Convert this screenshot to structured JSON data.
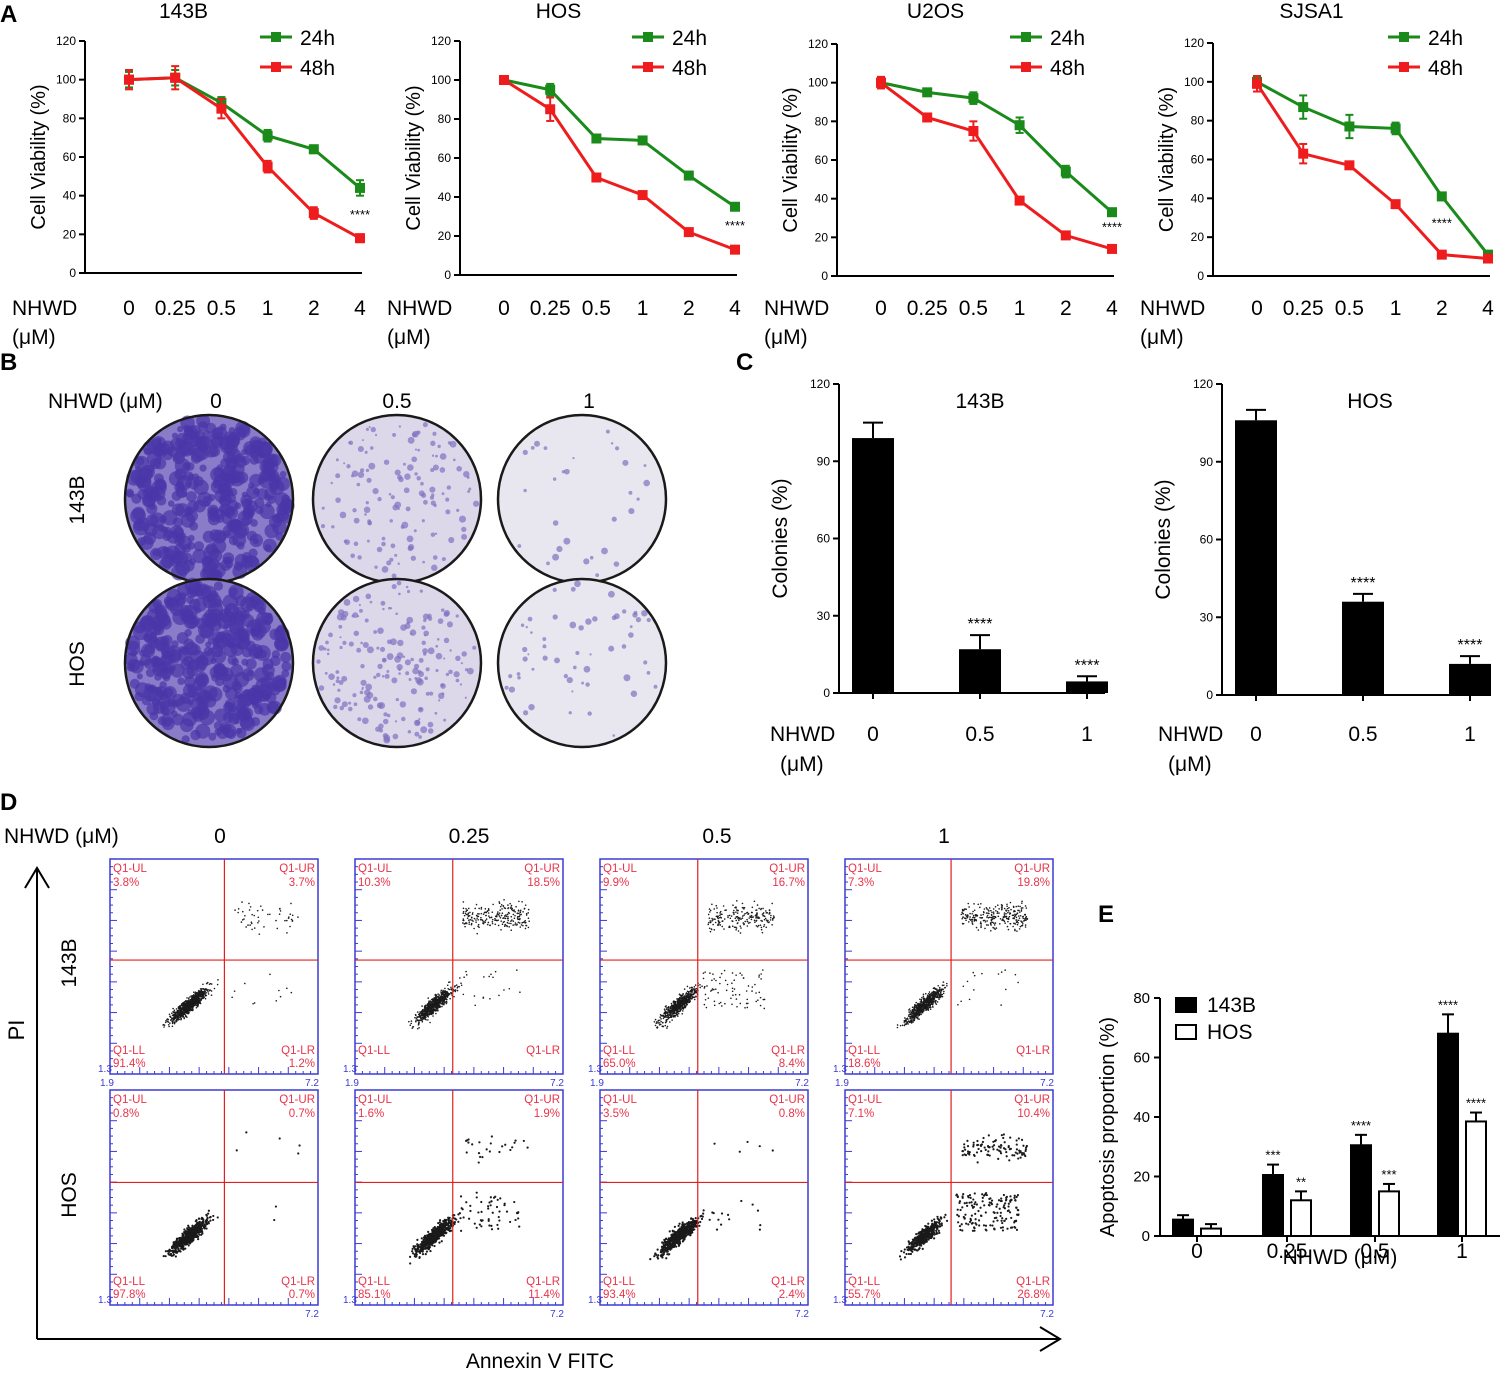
{
  "colors": {
    "green": "#1a8a1a",
    "red": "#ee1c1c",
    "black": "#000000",
    "flow_axis": "#3b3bd6",
    "flow_label": "#e8344a",
    "flow_gate": "#e02020",
    "crystal_violet": "#6a5ab8"
  },
  "panel_labels": [
    "A",
    "B",
    "C",
    "D",
    "E"
  ],
  "stars": {
    "s2": "**",
    "s3": "***",
    "s4": "****"
  },
  "panel_b": {
    "header_label": "NHWD (μM)",
    "concentrations": [
      "0",
      "0.5",
      "1"
    ],
    "rows": [
      "143B",
      "HOS"
    ],
    "density": [
      [
        1.0,
        0.35,
        0.08
      ],
      [
        1.0,
        0.5,
        0.15
      ]
    ]
  },
  "panel_d": {
    "header_label": "NHWD (μM)",
    "concentrations": [
      "0",
      "0.25",
      "0.5",
      "1"
    ],
    "rows": [
      "143B",
      "HOS"
    ],
    "y_axis_label": "PI",
    "x_axis_label": "Annexin V FITC",
    "quadrant_names": [
      "Q1-UL",
      "Q1-UR",
      "Q1-LL",
      "Q1-LR"
    ],
    "x_ticks": [
      "1.9",
      "",
      "",
      "",
      "",
      "",
      "7.2"
    ],
    "x_ticks_hos": [
      "",
      "",
      "",
      "",
      "",
      "",
      "7.2"
    ],
    "y_ticks": [
      "",
      "",
      "",
      "",
      "",
      "",
      "",
      "1.3"
    ],
    "quadrants": [
      [
        {
          "UL": "3.8%",
          "UR": "3.7%",
          "LL": "91.4%",
          "LR": "1.2%"
        },
        {
          "UL": "10.3%",
          "UR": "18.5%",
          "LL": "",
          "LR": ""
        },
        {
          "UL": "9.9%",
          "UR": "16.7%",
          "LL": "65.0%",
          "LR": "8.4%"
        },
        {
          "UL": "7.3%",
          "UR": "19.8%",
          "LL": "18.6%",
          "LR": ""
        }
      ],
      [
        {
          "UL": "0.8%",
          "UR": "0.7%",
          "LL": "97.8%",
          "LR": "0.7%"
        },
        {
          "UL": "1.6%",
          "UR": "1.9%",
          "LL": "85.1%",
          "LR": "11.4%"
        },
        {
          "UL": "3.5%",
          "UR": "0.8%",
          "LL": "93.4%",
          "LR": "2.4%"
        },
        {
          "UL": "7.1%",
          "UR": "10.4%",
          "LL": "55.7%",
          "LR": "26.8%"
        }
      ]
    ]
  },
  "chart_data": [
    {
      "id": "A1",
      "type": "line",
      "title": "143B",
      "categories": [
        "0",
        "0.25",
        "0.5",
        "1",
        "2",
        "4"
      ],
      "xlabel_line1": "NHWD",
      "xlabel_line2": "(μM)",
      "ylabel": "Cell Viability (%)",
      "ylim": [
        0,
        120
      ],
      "yticks": [
        "0",
        "20",
        "40",
        "60",
        "80",
        "100",
        "120"
      ],
      "series": [
        {
          "name": "24h",
          "color": "green",
          "values": [
            100,
            101,
            88,
            71,
            64,
            44
          ],
          "errors": [
            4,
            4,
            3,
            3,
            2,
            4
          ]
        },
        {
          "name": "48h",
          "color": "red",
          "values": [
            100,
            101,
            85,
            55,
            31,
            18
          ],
          "errors": [
            5,
            6,
            5,
            3,
            3,
            2
          ]
        }
      ],
      "annotation": "****",
      "annotation_x": 5,
      "annotation_y": 28
    },
    {
      "id": "A2",
      "type": "line",
      "title": "HOS",
      "categories": [
        "0",
        "0.25",
        "0.5",
        "1",
        "2",
        "4"
      ],
      "xlabel_line1": "NHWD",
      "xlabel_line2": "(μM)",
      "ylabel": "Cell Viability (%)",
      "ylim": [
        0,
        120
      ],
      "yticks": [
        "0",
        "20",
        "40",
        "60",
        "80",
        "100",
        "120"
      ],
      "series": [
        {
          "name": "24h",
          "color": "green",
          "values": [
            100,
            95,
            70,
            69,
            51,
            35
          ],
          "errors": [
            1,
            3,
            1,
            1,
            1,
            1
          ]
        },
        {
          "name": "48h",
          "color": "red",
          "values": [
            100,
            85,
            50,
            41,
            22,
            13
          ],
          "errors": [
            1,
            6,
            1,
            1,
            1,
            1
          ]
        }
      ],
      "annotation": "****",
      "annotation_x": 5,
      "annotation_y": 23
    },
    {
      "id": "A3",
      "type": "line",
      "title": "U2OS",
      "categories": [
        "0",
        "0.25",
        "0.5",
        "1",
        "2",
        "4"
      ],
      "xlabel_line1": "NHWD",
      "xlabel_line2": "(μM)",
      "ylabel": "Cell Viability (%)",
      "ylim": [
        0,
        120
      ],
      "yticks": [
        "0",
        "20",
        "40",
        "60",
        "80",
        "100",
        "120"
      ],
      "series": [
        {
          "name": "24h",
          "color": "green",
          "values": [
            100,
            95,
            92,
            78,
            54,
            33
          ],
          "errors": [
            2,
            1,
            3,
            4,
            3,
            1
          ]
        },
        {
          "name": "48h",
          "color": "red",
          "values": [
            100,
            82,
            75,
            39,
            21,
            14
          ],
          "errors": [
            3,
            1,
            5,
            1,
            1,
            1
          ]
        }
      ],
      "annotation": "****",
      "annotation_x": 5,
      "annotation_y": 23
    },
    {
      "id": "A4",
      "type": "line",
      "title": "SJSA1",
      "categories": [
        "0",
        "0.25",
        "0.5",
        "1",
        "2",
        "4"
      ],
      "xlabel_line1": "NHWD",
      "xlabel_line2": "(μM)",
      "ylabel": "Cell Viability (%)",
      "ylim": [
        0,
        120
      ],
      "yticks": [
        "0",
        "20",
        "40",
        "60",
        "80",
        "100",
        "120"
      ],
      "series": [
        {
          "name": "24h",
          "color": "green",
          "values": [
            100,
            87,
            77,
            76,
            41,
            11
          ],
          "errors": [
            3,
            6,
            6,
            3,
            2,
            1
          ]
        },
        {
          "name": "48h",
          "color": "red",
          "values": [
            99,
            63,
            57,
            37,
            11,
            9
          ],
          "errors": [
            4,
            5,
            1,
            1,
            1,
            1
          ]
        }
      ],
      "annotation": "****",
      "annotation_x": 4,
      "annotation_y": 25
    },
    {
      "id": "C1",
      "type": "bar",
      "title": "143B",
      "categories": [
        "0",
        "0.5",
        "1"
      ],
      "xlabel_line1": "NHWD",
      "xlabel_line2": "(μM)",
      "ylabel": "Colonies (%)",
      "ylim": [
        0,
        120
      ],
      "yticks": [
        "0",
        "30",
        "60",
        "90",
        "120"
      ],
      "values": [
        99,
        17,
        4.5
      ],
      "errors": [
        6,
        5.5,
        2
      ],
      "stars": [
        "",
        "****",
        "****"
      ]
    },
    {
      "id": "C2",
      "type": "bar",
      "title": "HOS",
      "categories": [
        "0",
        "0.5",
        "1"
      ],
      "xlabel_line1": "NHWD",
      "xlabel_line2": "(μM)",
      "ylabel": "Colonies (%)",
      "ylim": [
        0,
        120
      ],
      "yticks": [
        "0",
        "30",
        "60",
        "90",
        "120"
      ],
      "values": [
        106,
        36,
        12
      ],
      "errors": [
        4,
        3,
        3
      ],
      "stars": [
        "",
        "****",
        "****"
      ]
    },
    {
      "id": "E",
      "type": "bar",
      "title": "",
      "categories": [
        "0",
        "0.25",
        "0.5",
        "1"
      ],
      "xlabel": "NHWD (μM)",
      "ylabel": "Apoptosis proportion (%)",
      "ylim": [
        0,
        80
      ],
      "yticks": [
        "0",
        "20",
        "40",
        "60",
        "80"
      ],
      "series": [
        {
          "name": "143B",
          "fill": "black",
          "values": [
            5.5,
            20.5,
            30.5,
            68
          ],
          "errors": [
            1.5,
            3.5,
            3.5,
            6.5
          ],
          "stars": [
            "",
            "***",
            "****",
            "****"
          ]
        },
        {
          "name": "HOS",
          "fill": "white",
          "values": [
            2.5,
            12,
            15,
            38.5
          ],
          "errors": [
            1.5,
            3,
            2.5,
            3
          ],
          "stars": [
            "",
            "**",
            "***",
            "****"
          ]
        }
      ]
    }
  ]
}
